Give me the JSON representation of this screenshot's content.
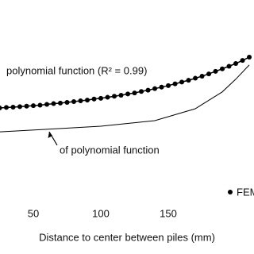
{
  "chart_data": {
    "type": "line",
    "x_label": "Distance to center between piles (mm)",
    "annotations": [
      "polynomial function (R² = 0.99)",
      "of polynomial function"
    ],
    "xlim": [
      25.3,
      213.5
    ],
    "xticks": [
      50,
      100,
      150
    ],
    "ylim": [
      0,
      100
    ],
    "legend": "lower right",
    "series": [
      {
        "name": "FEM",
        "color": "#000000",
        "marker": "dot",
        "x": [
          25,
          30,
          35,
          40,
          45,
          50,
          55,
          60,
          65,
          70,
          75,
          80,
          85,
          90,
          95,
          100,
          105,
          110,
          115,
          120,
          125,
          130,
          135,
          140,
          145,
          150,
          155,
          160,
          165,
          170,
          175,
          180,
          185,
          190,
          195,
          200,
          205,
          210
        ],
        "values": [
          57.5,
          57.7,
          57.8,
          58.0,
          58.2,
          58.4,
          58.6,
          58.9,
          59.2,
          59.4,
          59.7,
          60.0,
          60.3,
          60.6,
          61.0,
          61.3,
          61.7,
          62.1,
          62.5,
          63.0,
          63.4,
          64.0,
          64.5,
          65.1,
          65.7,
          66.3,
          67.0,
          67.7,
          68.4,
          69.2,
          70.0,
          70.9,
          71.9,
          72.9,
          73.9,
          75.0,
          76.2,
          77.5
        ]
      },
      {
        "color": "#000000",
        "x": [
          25,
          60,
          100,
          140,
          170,
          190,
          200,
          210
        ],
        "values": [
          48.1,
          49.1,
          50.3,
          52.5,
          57.2,
          63.8,
          68.8,
          74.4
        ]
      }
    ]
  }
}
